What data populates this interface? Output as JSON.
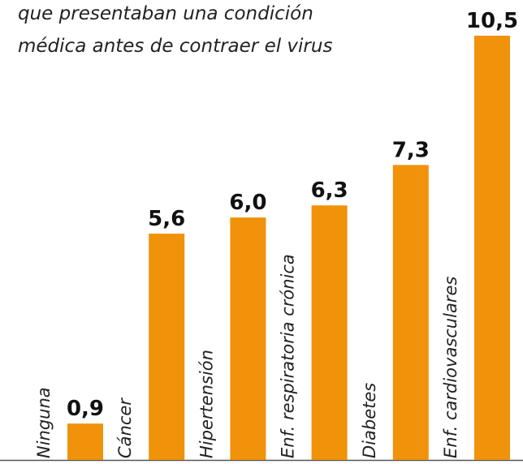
{
  "chart_data": {
    "type": "bar",
    "subtitle": [
      "que presentaban una condición",
      "médica antes de contraer el virus"
    ],
    "categories": [
      "Ninguna",
      "Cáncer",
      "Hipertensión",
      "Enf. respiratoria crónica",
      "Diabetes",
      "Enf. cardiovasculares"
    ],
    "values": [
      0.9,
      5.6,
      6.0,
      6.3,
      7.3,
      10.5
    ],
    "value_labels": [
      "0,9",
      "5,6",
      "6,0",
      "6,3",
      "7,3",
      "10,5"
    ],
    "color": "#f0920a"
  }
}
